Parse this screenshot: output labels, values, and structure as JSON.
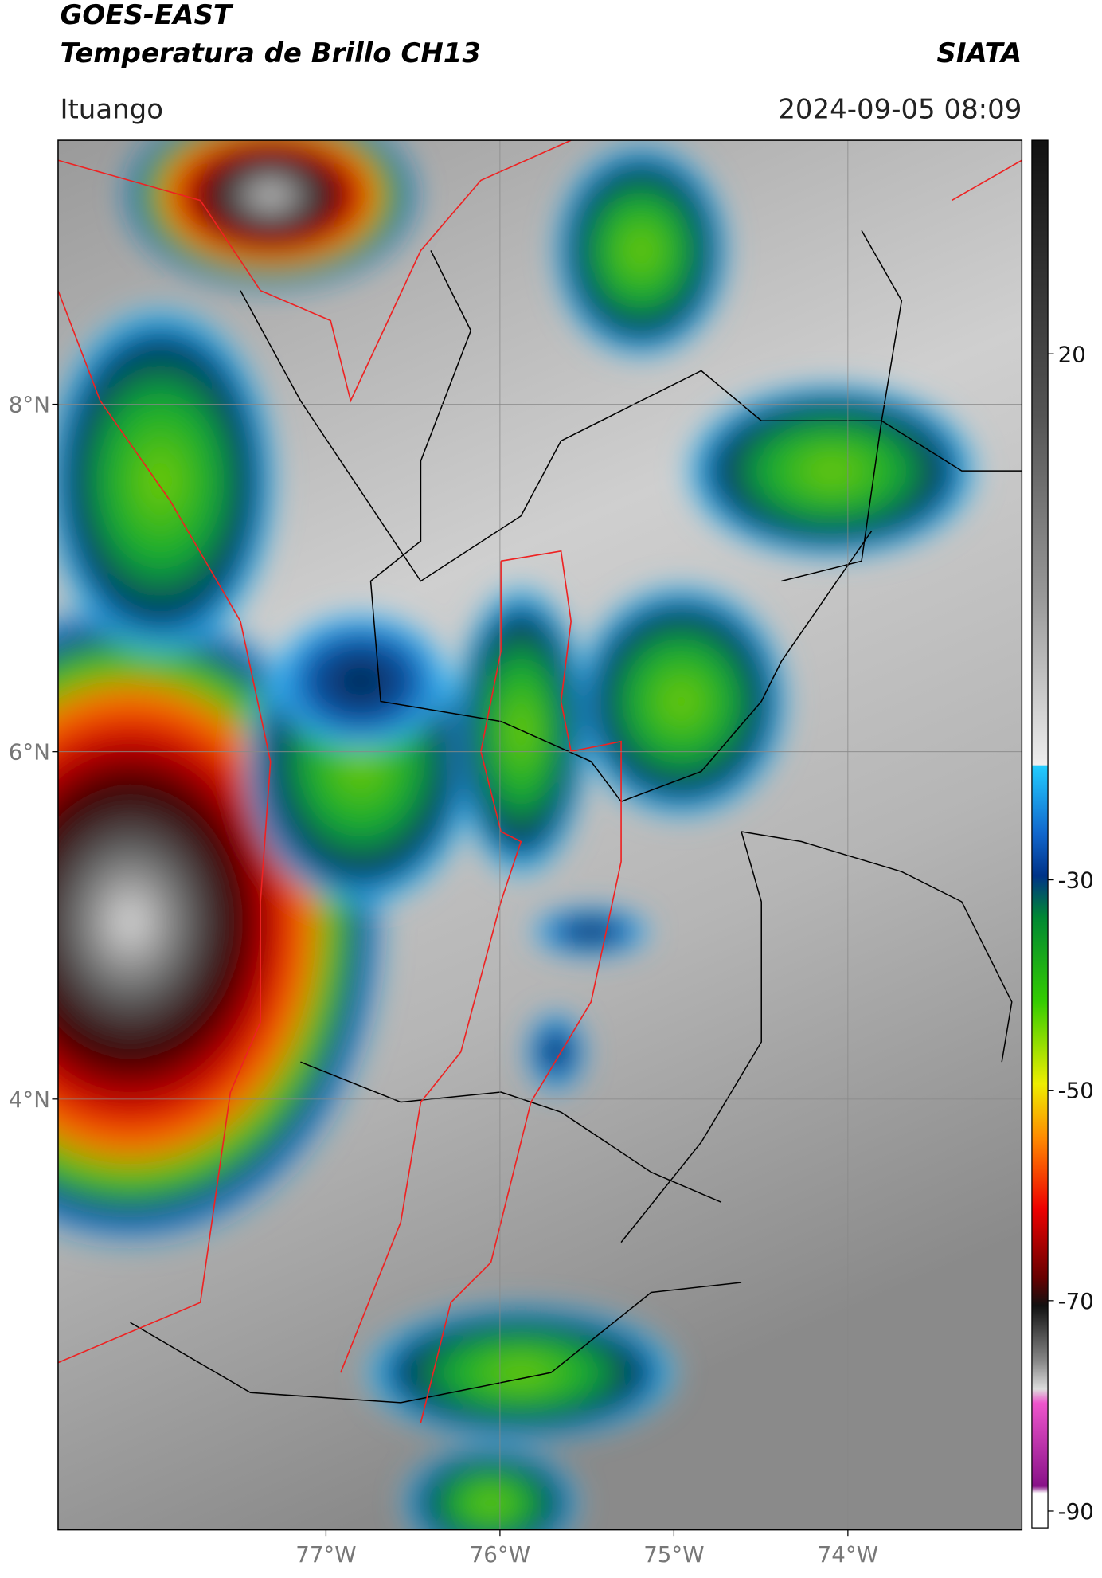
{
  "header": {
    "satellite": "GOES-EAST",
    "product": "Temperatura de Brillo CH13",
    "source": "SIATA",
    "location": "Ituango",
    "datetime": "2024-09-05 08:09"
  },
  "map": {
    "xlim": [
      -78.54,
      -73.0
    ],
    "ylim": [
      1.52,
      9.52
    ],
    "xticks": [
      {
        "value": -77,
        "label": "77°W"
      },
      {
        "value": -76,
        "label": "76°W"
      },
      {
        "value": -75,
        "label": "75°W"
      },
      {
        "value": -74,
        "label": "74°W"
      }
    ],
    "yticks": [
      {
        "value": 8,
        "label": "8°N"
      },
      {
        "value": 6,
        "label": "6°N"
      },
      {
        "value": 4,
        "label": "4°N"
      }
    ],
    "grid": true
  },
  "colorbar": {
    "lim": [
      -91.6,
      40.3
    ],
    "ticks": [
      20,
      -30,
      -50,
      -70,
      -90
    ]
  }
}
